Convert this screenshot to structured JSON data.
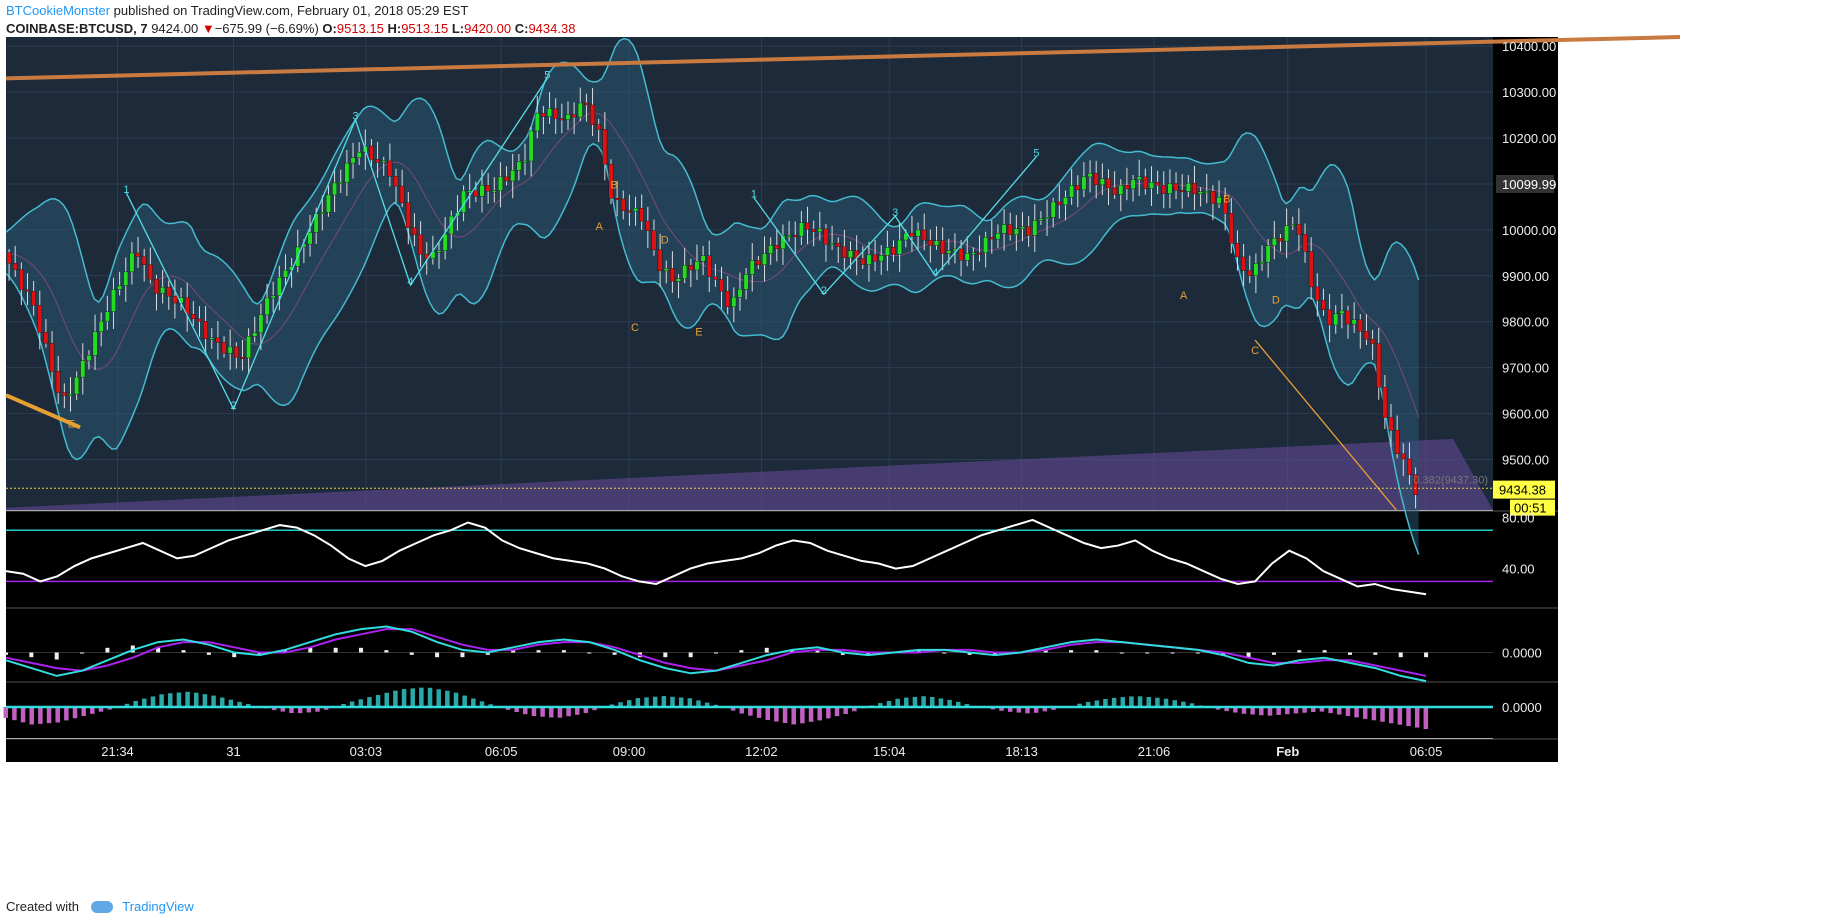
{
  "header": {
    "author": "BTCookieMonster",
    "published_text": "published on TradingView.com, February 01, 2018 05:29 EST",
    "symbol": "COINBASE:BTCUSD, 7",
    "last": "9424.00",
    "change_arrow": "▼",
    "change": "−675.99 (−6.69%)",
    "o_label": "O:",
    "o_value": "9513.15",
    "h_label": "H:",
    "h_value": "9513.15",
    "l_label": "L:",
    "l_value": "9420.00",
    "c_label": "C:",
    "c_value": "9434.38"
  },
  "footer": {
    "created_with": "Created with",
    "brand": "TradingView"
  },
  "colors": {
    "background": "#1c2a3a",
    "up_candle": "#22dd22",
    "down_candle": "#dd1111",
    "bollinger": "#44bbd0",
    "wave_cyan": "#55dde8",
    "wave_orange": "#e8a030",
    "trendline": "#c87a40",
    "channel": "#6a4a9a",
    "rsi_line": "#ffffff",
    "rsi_upper": "#22cccc",
    "rsi_lower": "#aa22ee",
    "macd": "#33dddd",
    "signal": "#aa22ee",
    "price_label": "#ffff44"
  },
  "chart_data": [
    {
      "type": "candlestick",
      "pane": "price",
      "ylim": [
        9390,
        10420
      ],
      "y_ticks": [
        "10400.00",
        "10300.00",
        "10200.00",
        "10100.00",
        "10000.00",
        "9900.00",
        "9800.00",
        "9700.00",
        "9600.00",
        "9500.00"
      ],
      "y_tick_values": [
        10400,
        10300,
        10200,
        10100,
        10000,
        9900,
        9800,
        9700,
        9600,
        9500
      ],
      "x_ticks": [
        "21:34",
        "31",
        "03:03",
        "06:05",
        "09:00",
        "12:02",
        "15:04",
        "18:13",
        "21:06",
        "Feb",
        "06:05"
      ],
      "x_tick_pos": [
        0.075,
        0.153,
        0.242,
        0.333,
        0.419,
        0.508,
        0.594,
        0.683,
        0.772,
        0.862,
        0.955
      ],
      "series_path": [
        [
          0.0,
          9950
        ],
        [
          0.02,
          9840
        ],
        [
          0.04,
          9620
        ],
        [
          0.05,
          9680
        ],
        [
          0.07,
          9830
        ],
        [
          0.09,
          9960
        ],
        [
          0.1,
          9880
        ],
        [
          0.12,
          9840
        ],
        [
          0.14,
          9760
        ],
        [
          0.16,
          9720
        ],
        [
          0.18,
          9860
        ],
        [
          0.2,
          9960
        ],
        [
          0.22,
          10080
        ],
        [
          0.24,
          10180
        ],
        [
          0.26,
          10130
        ],
        [
          0.28,
          9950
        ],
        [
          0.29,
          9940
        ],
        [
          0.31,
          10080
        ],
        [
          0.33,
          10090
        ],
        [
          0.35,
          10150
        ],
        [
          0.36,
          10260
        ],
        [
          0.38,
          10240
        ],
        [
          0.39,
          10280
        ],
        [
          0.4,
          10220
        ],
        [
          0.41,
          10060
        ],
        [
          0.43,
          10030
        ],
        [
          0.44,
          9930
        ],
        [
          0.45,
          9890
        ],
        [
          0.47,
          9940
        ],
        [
          0.48,
          9880
        ],
        [
          0.49,
          9830
        ],
        [
          0.5,
          9910
        ],
        [
          0.52,
          9970
        ],
        [
          0.54,
          10010
        ],
        [
          0.55,
          9990
        ],
        [
          0.56,
          9960
        ],
        [
          0.58,
          9930
        ],
        [
          0.6,
          9960
        ],
        [
          0.61,
          10000
        ],
        [
          0.63,
          9960
        ],
        [
          0.65,
          9940
        ],
        [
          0.67,
          10000
        ],
        [
          0.69,
          10000
        ],
        [
          0.71,
          10060
        ],
        [
          0.73,
          10120
        ],
        [
          0.75,
          10080
        ],
        [
          0.76,
          10110
        ],
        [
          0.78,
          10090
        ],
        [
          0.8,
          10090
        ],
        [
          0.82,
          10060
        ],
        [
          0.83,
          9930
        ],
        [
          0.84,
          9900
        ],
        [
          0.85,
          9960
        ],
        [
          0.87,
          10020
        ],
        [
          0.88,
          9880
        ],
        [
          0.89,
          9800
        ],
        [
          0.9,
          9820
        ],
        [
          0.92,
          9760
        ],
        [
          0.93,
          9580
        ],
        [
          0.95,
          9434
        ]
      ],
      "last_price_label": "9434.38",
      "countdown_label": "00:51",
      "current_price_label": "10099.99",
      "fib_label": "0.382(9437.30)",
      "wave_labels_cyan": [
        {
          "t": "1",
          "x": 0.081,
          "y": 10080
        },
        {
          "t": "2",
          "x": 0.153,
          "y": 9610
        },
        {
          "t": "3",
          "x": 0.235,
          "y": 10240
        },
        {
          "t": "4",
          "x": 0.272,
          "y": 9880
        },
        {
          "t": "5",
          "x": 0.364,
          "y": 10330
        },
        {
          "t": "1",
          "x": 0.503,
          "y": 10070
        },
        {
          "t": "2",
          "x": 0.55,
          "y": 9860
        },
        {
          "t": "3",
          "x": 0.598,
          "y": 10030
        },
        {
          "t": "4",
          "x": 0.625,
          "y": 9900
        },
        {
          "t": "5",
          "x": 0.693,
          "y": 10160
        }
      ],
      "wave_labels_orange": [
        {
          "t": "E",
          "x": 0.044,
          "y": 9570
        },
        {
          "t": "B",
          "x": 0.409,
          "y": 10090
        },
        {
          "t": "A",
          "x": 0.399,
          "y": 10000
        },
        {
          "t": "D",
          "x": 0.443,
          "y": 9970
        },
        {
          "t": "C",
          "x": 0.423,
          "y": 9780
        },
        {
          "t": "E",
          "x": 0.466,
          "y": 9770
        },
        {
          "t": "B",
          "x": 0.821,
          "y": 10060
        },
        {
          "t": "A",
          "x": 0.792,
          "y": 9850
        },
        {
          "t": "D",
          "x": 0.854,
          "y": 9840
        },
        {
          "t": "C",
          "x": 0.84,
          "y": 9730
        }
      ]
    },
    {
      "type": "line",
      "pane": "rsi",
      "ylim": [
        10,
        85
      ],
      "y_ticks": [
        "80.00",
        "40.00"
      ],
      "y_tick_values": [
        80,
        40
      ],
      "bands": [
        70,
        30
      ],
      "values": [
        38,
        36,
        30,
        34,
        42,
        48,
        52,
        56,
        60,
        54,
        48,
        50,
        56,
        62,
        66,
        70,
        74,
        72,
        66,
        58,
        48,
        42,
        46,
        54,
        60,
        66,
        70,
        76,
        72,
        62,
        56,
        52,
        48,
        46,
        44,
        40,
        34,
        30,
        28,
        34,
        40,
        44,
        46,
        48,
        52,
        58,
        62,
        60,
        54,
        50,
        46,
        44,
        40,
        42,
        48,
        54,
        60,
        66,
        70,
        74,
        78,
        72,
        66,
        60,
        56,
        58,
        62,
        54,
        48,
        44,
        38,
        32,
        28,
        30,
        44,
        54,
        48,
        38,
        32,
        26,
        28,
        24,
        22,
        20
      ]
    },
    {
      "type": "bar+line",
      "pane": "macd",
      "y_ticks": [
        "0.0000"
      ],
      "macd": [
        -0.3,
        -0.6,
        -0.9,
        -0.7,
        -0.3,
        0.1,
        0.4,
        0.5,
        0.3,
        0.0,
        -0.1,
        0.1,
        0.4,
        0.7,
        0.9,
        1.0,
        0.8,
        0.4,
        0.1,
        0.0,
        0.2,
        0.4,
        0.5,
        0.4,
        0.1,
        -0.3,
        -0.6,
        -0.8,
        -0.7,
        -0.4,
        -0.1,
        0.1,
        0.2,
        0.0,
        -0.1,
        0.0,
        0.1,
        0.1,
        0.0,
        -0.1,
        0.0,
        0.2,
        0.4,
        0.5,
        0.4,
        0.3,
        0.2,
        0.1,
        -0.1,
        -0.4,
        -0.5,
        -0.3,
        -0.2,
        -0.4,
        -0.6,
        -0.9,
        -1.1
      ],
      "signal": [
        -0.2,
        -0.4,
        -0.6,
        -0.7,
        -0.5,
        -0.2,
        0.2,
        0.4,
        0.4,
        0.2,
        0.0,
        0.0,
        0.2,
        0.5,
        0.7,
        0.9,
        0.9,
        0.6,
        0.3,
        0.1,
        0.1,
        0.3,
        0.4,
        0.4,
        0.2,
        -0.1,
        -0.4,
        -0.6,
        -0.7,
        -0.5,
        -0.3,
        0.0,
        0.1,
        0.1,
        0.0,
        0.0,
        0.0,
        0.1,
        0.1,
        0.0,
        0.0,
        0.1,
        0.3,
        0.4,
        0.4,
        0.3,
        0.2,
        0.1,
        0.0,
        -0.2,
        -0.4,
        -0.4,
        -0.3,
        -0.3,
        -0.5,
        -0.7,
        -0.9
      ]
    },
    {
      "type": "bar",
      "pane": "oscillator",
      "y_ticks": [
        "0.0000"
      ],
      "values": [
        -0.5,
        -0.8,
        -0.7,
        -0.4,
        -0.1,
        0.3,
        0.6,
        0.7,
        0.5,
        0.2,
        -0.1,
        -0.3,
        -0.2,
        0.2,
        0.5,
        0.8,
        0.9,
        0.7,
        0.3,
        -0.1,
        -0.4,
        -0.5,
        -0.3,
        0.1,
        0.4,
        0.5,
        0.4,
        0.1,
        -0.3,
        -0.6,
        -0.8,
        -0.6,
        -0.3,
        0.1,
        0.4,
        0.5,
        0.3,
        0.0,
        -0.2,
        -0.3,
        -0.1,
        0.2,
        0.4,
        0.5,
        0.4,
        0.2,
        -0.1,
        -0.3,
        -0.4,
        -0.3,
        -0.2,
        -0.4,
        -0.6,
        -0.8,
        -1.0
      ]
    }
  ]
}
